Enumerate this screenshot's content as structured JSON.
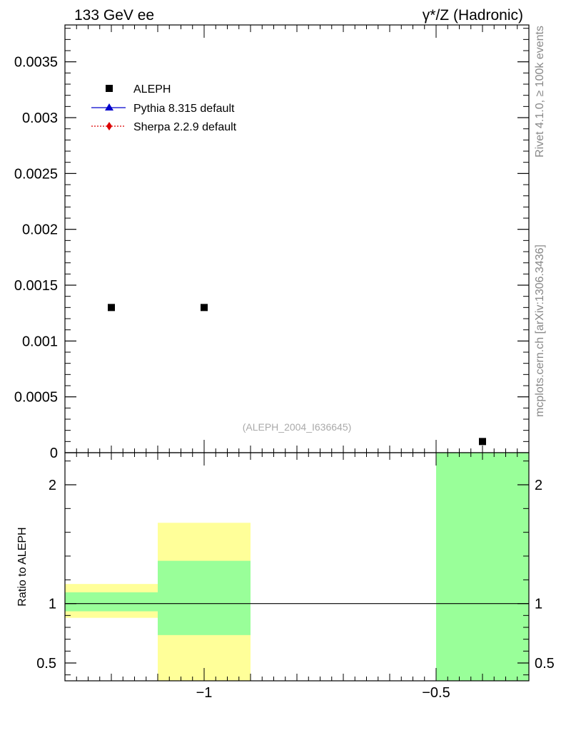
{
  "header": {
    "left": "133 GeV ee",
    "right": "γ*/Z (Hadronic)"
  },
  "side_labels": {
    "rivet": "Rivet 4.1.0, ≥ 100k events",
    "mcplots": "mcplots.cern.ch [arXiv:1306.3436]"
  },
  "watermark": "(ALEPH_2004_I636645)",
  "colors": {
    "data": "#000000",
    "pythia": "#0000cc",
    "sherpa": "#dd0000",
    "band_inner": "#99ff99",
    "band_outer": "#ffff99"
  },
  "chart_data": [
    {
      "type": "scatter",
      "xlim": [
        -1.3,
        -0.3
      ],
      "ylim": [
        0,
        0.00383
      ],
      "yticks": [
        0,
        0.0005,
        0.001,
        0.0015,
        0.002,
        0.0025,
        0.003,
        0.0035
      ],
      "ytick_labels": [
        "0",
        "0.0005",
        "0.001",
        "0.0015",
        "0.002",
        "0.0025",
        "0.003",
        "0.0035"
      ],
      "legend": [
        {
          "key": "data",
          "label": "ALEPH",
          "marker": "square"
        },
        {
          "key": "pythia",
          "label": "Pythia 8.315 default",
          "marker": "triangle"
        },
        {
          "key": "sherpa",
          "label": "Sherpa 2.2.9 default",
          "marker": "diamond"
        }
      ],
      "legend_position": "top-left",
      "series": [
        {
          "name": "ALEPH",
          "x": [
            -1.2,
            -1.0,
            -0.4
          ],
          "y": [
            0.0013,
            0.0013,
            0.0001
          ]
        }
      ]
    },
    {
      "type": "area",
      "xlim": [
        -1.3,
        -0.3
      ],
      "ylim": [
        0.35,
        2.27
      ],
      "ylabel": "Ratio to ALEPH",
      "yticks": [
        0.5,
        1,
        2
      ],
      "ytick_labels": [
        "0.5",
        "1",
        "2"
      ],
      "xticks": [
        -1,
        -0.5
      ],
      "xtick_labels": [
        "−1",
        "−0.5"
      ],
      "reference_line": 1,
      "bands": [
        {
          "x": [
            -1.3,
            -1.1
          ],
          "inner": [
            0.935,
            1.095
          ],
          "outer": [
            0.88,
            1.165
          ]
        },
        {
          "x": [
            -1.1,
            -0.9
          ],
          "inner": [
            0.735,
            1.36
          ],
          "outer": [
            0.35,
            1.68
          ]
        },
        {
          "x": [
            -0.5,
            -0.3
          ],
          "inner": [
            0.35,
            2.27
          ],
          "outer": [
            0.35,
            2.27
          ]
        }
      ]
    }
  ]
}
